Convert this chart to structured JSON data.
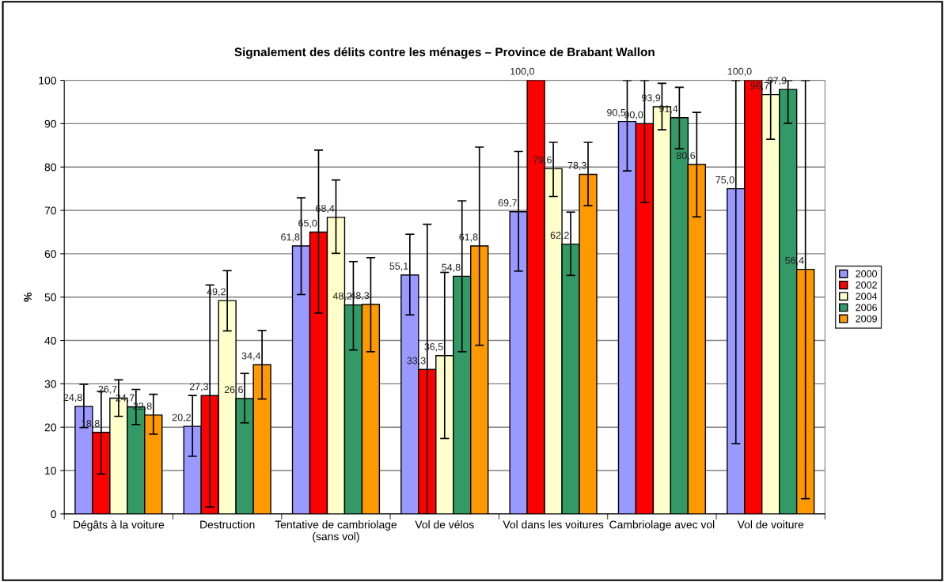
{
  "chart_data": {
    "type": "bar",
    "title": "Signalement des délits contre les ménages – Province de Brabant Wallon",
    "ylabel": "%",
    "categories": [
      "Dégâts à la voiture",
      "Destruction",
      "Tentative de cambriolage (sans vol)",
      "Vol de vélos",
      "Vol dans les voitures",
      "Cambriolage avec vol",
      "Vol de voiture"
    ],
    "series": [
      {
        "name": "2000",
        "color": "#9999ff",
        "values": [
          24.8,
          20.2,
          61.8,
          55.1,
          69.7,
          90.5,
          75.0
        ],
        "value_labels": [
          "24,8",
          "20,2",
          "61,8",
          "55,1",
          "69,7",
          "90,5",
          "75,0"
        ],
        "errors": [
          [
            19.9,
            29.9
          ],
          [
            13.3,
            27.3
          ],
          [
            50.6,
            72.9
          ],
          [
            45.9,
            64.5
          ],
          [
            56.0,
            83.6
          ],
          [
            79.1,
            100
          ],
          [
            16.2,
            100
          ]
        ]
      },
      {
        "name": "2002",
        "color": "#ff0000",
        "values": [
          18.8,
          27.3,
          65.0,
          33.3,
          100.0,
          90.0,
          100.0
        ],
        "value_labels": [
          "18,8",
          "27,3",
          "65,0",
          "33,3",
          "100,0",
          "90,0",
          "100,0"
        ],
        "errors": [
          [
            9.2,
            28.3
          ],
          [
            1.6,
            52.8
          ],
          [
            46.3,
            83.9
          ],
          [
            0,
            66.8
          ],
          null,
          [
            71.8,
            100
          ],
          null
        ]
      },
      {
        "name": "2004",
        "color": "#ffffcc",
        "values": [
          26.7,
          49.2,
          68.4,
          36.5,
          79.6,
          93.9,
          96.7
        ],
        "value_labels": [
          "26,7",
          "49,2",
          "68,4",
          "36,5",
          "79,6",
          "93,9",
          "96,7"
        ],
        "errors": [
          [
            22.5,
            30.9
          ],
          [
            42.2,
            56.1
          ],
          [
            60.1,
            77.0
          ],
          [
            17.4,
            55.7
          ],
          [
            73.2,
            85.7
          ],
          [
            88.6,
            99.3
          ],
          [
            86.4,
            100
          ]
        ]
      },
      {
        "name": "2006",
        "color": "#339966",
        "values": [
          24.7,
          26.6,
          48.2,
          54.8,
          62.2,
          91.4,
          97.9
        ],
        "value_labels": [
          "24,7",
          "26,6",
          "48,2",
          "54,8",
          "62,2",
          "91,4",
          "97,9"
        ],
        "errors": [
          [
            20.6,
            28.7
          ],
          [
            21.0,
            32.4
          ],
          [
            37.8,
            58.2
          ],
          [
            37.4,
            72.2
          ],
          [
            55.0,
            69.6
          ],
          [
            84.2,
            98.4
          ],
          [
            90.1,
            100
          ]
        ]
      },
      {
        "name": "2009",
        "color": "#ff9900",
        "values": [
          22.8,
          34.4,
          48.3,
          61.8,
          78.3,
          80.6,
          56.4
        ],
        "value_labels": [
          "22,8",
          "34,4",
          "48,3",
          "61,8",
          "78,3",
          "80,6",
          "56,4"
        ],
        "errors": [
          [
            18.4,
            27.6
          ],
          [
            26.5,
            42.3
          ],
          [
            37.4,
            59.1
          ],
          [
            38.9,
            84.6
          ],
          [
            71.1,
            85.7
          ],
          [
            68.5,
            92.6
          ],
          [
            3.5,
            100
          ]
        ]
      }
    ],
    "ylim": [
      0,
      100
    ],
    "yticks": [
      0,
      10,
      20,
      30,
      40,
      50,
      60,
      70,
      80,
      90,
      100
    ],
    "grid": "y",
    "legend": "right"
  }
}
